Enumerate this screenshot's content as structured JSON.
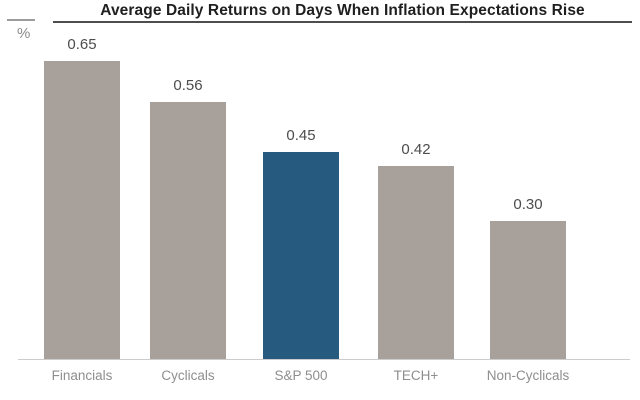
{
  "header": {
    "title": "Average Daily Returns on Days When Inflation Expectations Rise",
    "unit_label": "%"
  },
  "colors": {
    "bar_default": "#a8a19b",
    "bar_highlight": "#265a7f",
    "title_text": "#1f1f1f",
    "title_underline": "#4d4d4d",
    "value_label_text": "#4d4d4d",
    "category_label_text": "#8e8e8e",
    "baseline": "#cccccc"
  },
  "chart_data": {
    "type": "bar",
    "title": "Average Daily Returns on Days When Inflation Expectations Rise",
    "categories": [
      "Financials",
      "Cyclicals",
      "S&P 500",
      "TECH+",
      "Non-Cyclicals"
    ],
    "values": [
      0.65,
      0.56,
      0.45,
      0.42,
      0.3
    ],
    "value_labels": [
      "0.65",
      "0.56",
      "0.45",
      "0.42",
      "0.30"
    ],
    "highlight_index": 2,
    "highlight_category": "S&P 500",
    "xlabel": "",
    "ylabel": "%",
    "ylim": [
      0,
      0.72
    ],
    "grid": false,
    "legend": null
  }
}
